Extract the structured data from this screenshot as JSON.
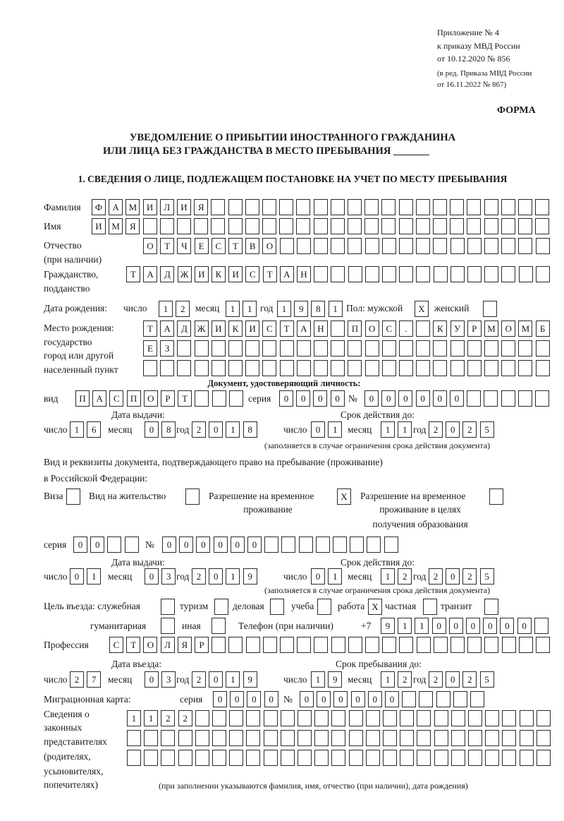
{
  "header": {
    "appendix": "Приложение № 4",
    "order": "к приказу МВД России",
    "order_date": "от 10.12.2020 № 856",
    "edition_1": "(в ред. Приказа МВД России",
    "edition_2": "от 16.11.2022 № 867)",
    "form_label": "ФОРМА",
    "title_1": "УВЕДОМЛЕНИЕ О ПРИБЫТИИ ИНОСТРАННОГО ГРАЖДАНИНА",
    "title_2": "ИЛИ ЛИЦА БЕЗ ГРАЖДАНСТВА В МЕСТО ПРЕБЫВАНИЯ",
    "title_blank": "_______",
    "section_1": "1. СВЕДЕНИЯ О ЛИЦЕ, ПОДЛЕЖАЩЕМ ПОСТАНОВКЕ НА УЧЕТ ПО МЕСТУ ПРЕБЫВАНИЯ"
  },
  "person": {
    "surname_label": "Фамилия",
    "surname": [
      "Ф",
      "А",
      "М",
      "И",
      "Л",
      "И",
      "Я",
      "",
      "",
      "",
      "",
      "",
      "",
      "",
      "",
      "",
      "",
      "",
      "",
      "",
      "",
      "",
      "",
      "",
      "",
      "",
      ""
    ],
    "name_label": "Имя",
    "name": [
      "И",
      "М",
      "Я",
      "",
      "",
      "",
      "",
      "",
      "",
      "",
      "",
      "",
      "",
      "",
      "",
      "",
      "",
      "",
      "",
      "",
      "",
      "",
      "",
      "",
      "",
      "",
      ""
    ],
    "patronymic_label_1": "Отчество",
    "patronymic_label_2": "(при наличии)",
    "patronymic": [
      "О",
      "Т",
      "Ч",
      "Е",
      "С",
      "Т",
      "В",
      "О",
      "",
      "",
      "",
      "",
      "",
      "",
      "",
      "",
      "",
      "",
      "",
      "",
      "",
      "",
      "",
      ""
    ],
    "citizenship_label_1": "Гражданство,",
    "citizenship_label_2": "подданство",
    "citizenship": [
      "Т",
      "А",
      "Д",
      "Ж",
      "И",
      "К",
      "И",
      "С",
      "Т",
      "А",
      "Н",
      "",
      "",
      "",
      "",
      "",
      "",
      "",
      "",
      "",
      "",
      "",
      "",
      "",
      ""
    ],
    "birth_label": "Дата рождения:",
    "day_label": "число",
    "month_label": "месяц",
    "year_label": "год",
    "birth_day": [
      "1",
      "2"
    ],
    "birth_month": [
      "1",
      "1"
    ],
    "birth_year": [
      "1",
      "9",
      "8",
      "1"
    ],
    "sex_male_label": "Пол: мужской",
    "sex_male": [
      "X"
    ],
    "sex_female_label": "женский",
    "sex_female": [
      ""
    ],
    "birthplace_label_1": "Место рождения:",
    "birthplace_label_2": "государство",
    "birthplace_label_3": "город или другой",
    "birthplace_label_4": "населенный пункт",
    "birthplace_1": [
      "Т",
      "А",
      "Д",
      "Ж",
      "И",
      "К",
      "И",
      "С",
      "Т",
      "А",
      "Н",
      "",
      "П",
      "О",
      "С",
      ".",
      "",
      "К",
      "У",
      "Р",
      "М",
      "О",
      "М",
      "Б"
    ],
    "birthplace_2": [
      "Е",
      "З",
      "",
      "",
      "",
      "",
      "",
      "",
      "",
      "",
      "",
      "",
      "",
      "",
      "",
      "",
      "",
      "",
      "",
      "",
      "",
      "",
      "",
      ""
    ],
    "birthplace_3": [
      "",
      "",
      "",
      "",
      "",
      "",
      "",
      "",
      "",
      "",
      "",
      "",
      "",
      "",
      "",
      "",
      "",
      "",
      "",
      "",
      "",
      "",
      "",
      ""
    ]
  },
  "identity_doc": {
    "heading": "Документ, удостоверяющий личность:",
    "type_label": "вид",
    "type": [
      "П",
      "А",
      "С",
      "П",
      "О",
      "Р",
      "Т",
      "",
      "",
      ""
    ],
    "series_label": "серия",
    "series": [
      "0",
      "0",
      "0",
      "0"
    ],
    "number_label": "№",
    "number": [
      "0",
      "0",
      "0",
      "0",
      "0",
      "0",
      "",
      "",
      "",
      "",
      ""
    ],
    "issue_label": "Дата выдачи:",
    "valid_label": "Срок действия до:",
    "issue_day": [
      "1",
      "6"
    ],
    "issue_month": [
      "0",
      "8"
    ],
    "issue_year": [
      "2",
      "0",
      "1",
      "8"
    ],
    "valid_day": [
      "0",
      "1"
    ],
    "valid_month": [
      "1",
      "1"
    ],
    "valid_year": [
      "2",
      "0",
      "2",
      "5"
    ],
    "note": "(заполняется в случае ограничения срока действия документа)"
  },
  "residence_doc": {
    "heading_1": "Вид и реквизиты документа, подтверждающего право на пребывание (проживание)",
    "heading_2": "в Российской Федерации:",
    "visa_label": "Виза",
    "visa": [
      ""
    ],
    "residence_permit_label": "Вид на жительство",
    "residence_permit": [
      ""
    ],
    "temp_permit_label_1": "Разрешение на временное",
    "temp_permit_label_2": "проживание",
    "temp_permit": [
      "X"
    ],
    "temp_edu_label_1": "Разрешение на временное",
    "temp_edu_label_2": "проживание в целях",
    "temp_edu_label_3": "получения образования",
    "temp_edu": [
      ""
    ],
    "series_label": "серия",
    "series": [
      "0",
      "0",
      "",
      ""
    ],
    "number_label": "№",
    "number": [
      "0",
      "0",
      "0",
      "0",
      "0",
      "0",
      "",
      "",
      "",
      "",
      "",
      "",
      "",
      ""
    ],
    "issue_label": "Дата выдачи:",
    "valid_label": "Срок действия до:",
    "issue_day": [
      "0",
      "1"
    ],
    "issue_month": [
      "0",
      "3"
    ],
    "issue_year": [
      "2",
      "0",
      "1",
      "9"
    ],
    "valid_day": [
      "0",
      "1"
    ],
    "valid_month": [
      "1",
      "2"
    ],
    "valid_year": [
      "2",
      "0",
      "2",
      "5"
    ],
    "note": "(заполняется в случае ограничения срока действия документа)"
  },
  "purpose": {
    "label": "Цель въезда: служебная",
    "official": [
      ""
    ],
    "tourism_label": "туризм",
    "tourism": [
      ""
    ],
    "business_label": "деловая",
    "business": [
      ""
    ],
    "study_label": "учеба",
    "study": [
      ""
    ],
    "work_label": "работа",
    "work": [
      "X"
    ],
    "private_label": "частная",
    "private": [
      ""
    ],
    "transit_label": "транзит",
    "transit": [
      ""
    ],
    "humanitarian_label": "гуманитарная",
    "humanitarian": [
      ""
    ],
    "other_label": "иная",
    "other": [
      ""
    ],
    "phone_label": "Телефон (при наличии)",
    "phone_prefix": "+7",
    "phone": [
      "9",
      "1",
      "1",
      "0",
      "0",
      "0",
      "0",
      "0",
      "0",
      ""
    ]
  },
  "profession": {
    "label": "Профессия",
    "value": [
      "С",
      "Т",
      "О",
      "Л",
      "Я",
      "Р",
      "",
      "",
      "",
      "",
      "",
      "",
      "",
      "",
      "",
      "",
      "",
      "",
      "",
      "",
      "",
      "",
      "",
      "",
      "",
      ""
    ]
  },
  "stay": {
    "entry_label": "Дата въезда:",
    "until_label": "Срок пребывания до:",
    "entry_day": [
      "2",
      "7"
    ],
    "entry_month": [
      "0",
      "3"
    ],
    "entry_year": [
      "2",
      "0",
      "1",
      "9"
    ],
    "until_day": [
      "1",
      "9"
    ],
    "until_month": [
      "1",
      "2"
    ],
    "until_year": [
      "2",
      "0",
      "2",
      "5"
    ]
  },
  "migration_card": {
    "label": "Миграционная карта:",
    "series_label": "серия",
    "series": [
      "0",
      "0",
      "0",
      "0"
    ],
    "number_label": "№",
    "number": [
      "0",
      "0",
      "0",
      "0",
      "0",
      "0",
      "",
      "",
      "",
      "",
      ""
    ]
  },
  "representatives": {
    "label_1": "Сведения о",
    "label_2": "законных",
    "label_3": "представителях",
    "label_4": "(родителях,",
    "label_5": "усыновителях,",
    "label_6": "попечителях)",
    "row_1": [
      "1",
      "1",
      "2",
      "2",
      "",
      "",
      "",
      "",
      "",
      "",
      "",
      "",
      "",
      "",
      "",
      "",
      "",
      "",
      "",
      "",
      "",
      "",
      "",
      "",
      ""
    ],
    "row_2": [
      "",
      "",
      "",
      "",
      "",
      "",
      "",
      "",
      "",
      "",
      "",
      "",
      "",
      "",
      "",
      "",
      "",
      "",
      "",
      "",
      "",
      "",
      "",
      "",
      ""
    ],
    "row_3": [
      "",
      "",
      "",
      "",
      "",
      "",
      "",
      "",
      "",
      "",
      "",
      "",
      "",
      "",
      "",
      "",
      "",
      "",
      "",
      "",
      "",
      "",
      "",
      "",
      ""
    ],
    "note": "(при заполнении указываются фамилия, имя, отчество (при наличии), дата рождения)"
  }
}
